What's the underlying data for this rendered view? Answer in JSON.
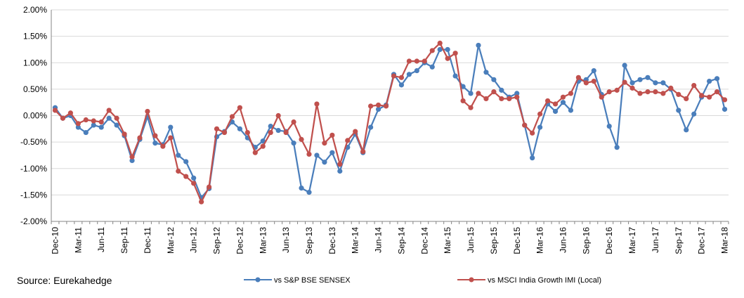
{
  "source_note": "Source: Eurekahedge",
  "chart_data": {
    "type": "line",
    "title": "",
    "xlabel": "",
    "ylabel": "",
    "ylim": [
      -2.0,
      2.0
    ],
    "y_ticks": [
      "2.00%",
      "1.50%",
      "1.00%",
      "0.50%",
      "0.00%",
      "-0.50%",
      "-1.00%",
      "-1.50%",
      "-2.00%"
    ],
    "y_tick_values": [
      2.0,
      1.5,
      1.0,
      0.5,
      0.0,
      -0.5,
      -1.0,
      -1.5,
      -2.0
    ],
    "x_tick_labels": [
      "Dec-10",
      "Mar-11",
      "Jun-11",
      "Sep-11",
      "Dec-11",
      "Mar-12",
      "Jun-12",
      "Sep-12",
      "Dec-12",
      "Mar-13",
      "Jun-13",
      "Sep-13",
      "Dec-13",
      "Mar-14",
      "Jun-14",
      "Sep-14",
      "Dec-14",
      "Mar-15",
      "Jun-15",
      "Sep-15",
      "Dec-15",
      "Mar-16",
      "Jun-16",
      "Sep-16",
      "Dec-16",
      "Mar-17",
      "Jun-17",
      "Sep-17",
      "Dec-17",
      "Mar-18"
    ],
    "x_tick_index": [
      0,
      3,
      6,
      9,
      12,
      15,
      18,
      21,
      24,
      27,
      30,
      33,
      36,
      39,
      42,
      45,
      48,
      51,
      54,
      57,
      60,
      63,
      66,
      69,
      72,
      75,
      78,
      81,
      84,
      87
    ],
    "grid": "horizontal",
    "legend_position": "bottom",
    "series": [
      {
        "name": "vs S&P BSE SENSEX",
        "color": "#4a7ebb",
        "values": [
          0.15,
          -0.05,
          0.0,
          -0.22,
          -0.32,
          -0.18,
          -0.22,
          -0.05,
          -0.18,
          -0.38,
          -0.85,
          -0.45,
          -0.02,
          -0.52,
          -0.55,
          -0.22,
          -0.75,
          -0.87,
          -1.18,
          -1.55,
          -1.38,
          -0.4,
          -0.3,
          -0.12,
          -0.25,
          -0.42,
          -0.6,
          -0.48,
          -0.2,
          -0.28,
          -0.3,
          -0.52,
          -1.37,
          -1.45,
          -0.75,
          -0.88,
          -0.7,
          -1.05,
          -0.6,
          -0.35,
          -0.7,
          -0.22,
          0.12,
          0.2,
          0.78,
          0.58,
          0.78,
          0.85,
          1.0,
          0.92,
          1.25,
          1.25,
          0.75,
          0.55,
          0.42,
          1.33,
          0.82,
          0.68,
          0.48,
          0.35,
          0.42,
          -0.18,
          -0.8,
          -0.22,
          0.22,
          0.08,
          0.25,
          0.1,
          0.65,
          0.68,
          0.85,
          0.4,
          -0.2,
          -0.6,
          0.95,
          0.62,
          0.68,
          0.72,
          0.62,
          0.62,
          0.5,
          0.1,
          -0.27,
          0.03,
          0.35,
          0.65,
          0.7,
          0.12
        ]
      },
      {
        "name": "vs MSCI India Growth IMI (Local)",
        "color": "#c0504d",
        "values": [
          0.1,
          -0.05,
          0.05,
          -0.15,
          -0.08,
          -0.1,
          -0.12,
          0.1,
          -0.05,
          -0.35,
          -0.78,
          -0.42,
          0.08,
          -0.38,
          -0.58,
          -0.42,
          -1.05,
          -1.15,
          -1.28,
          -1.63,
          -1.35,
          -0.25,
          -0.32,
          -0.02,
          0.15,
          -0.32,
          -0.7,
          -0.58,
          -0.32,
          0.0,
          -0.32,
          -0.12,
          -0.45,
          -0.73,
          0.22,
          -0.52,
          -0.37,
          -0.92,
          -0.47,
          -0.3,
          -0.68,
          0.18,
          0.2,
          0.18,
          0.75,
          0.72,
          1.03,
          1.03,
          1.03,
          1.23,
          1.37,
          1.08,
          1.18,
          0.28,
          0.15,
          0.42,
          0.32,
          0.45,
          0.32,
          0.32,
          0.35,
          -0.18,
          -0.33,
          0.03,
          0.28,
          0.22,
          0.35,
          0.42,
          0.72,
          0.62,
          0.65,
          0.35,
          0.45,
          0.48,
          0.63,
          0.52,
          0.42,
          0.45,
          0.45,
          0.42,
          0.52,
          0.4,
          0.32,
          0.57,
          0.38,
          0.35,
          0.45,
          0.3
        ]
      }
    ]
  }
}
